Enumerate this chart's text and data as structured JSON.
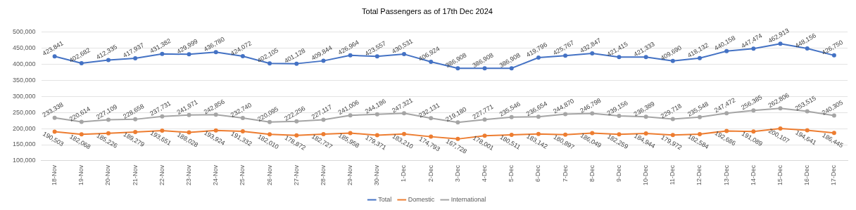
{
  "chart_data": {
    "type": "line",
    "title": "Total Passengers as of 17th Dec 2024",
    "categories": [
      "18-Nov",
      "19-Nov",
      "20-Nov",
      "21-Nov",
      "22-Nov",
      "23-Nov",
      "24-Nov",
      "25-Nov",
      "26-Nov",
      "27-Nov",
      "28-Nov",
      "29-Nov",
      "30-Nov",
      "1-Dec",
      "2-Dec",
      "3-Dec",
      "4-Dec",
      "5-Dec",
      "6-Dec",
      "7-Dec",
      "8-Dec",
      "9-Dec",
      "10-Dec",
      "11-Dec",
      "12-Dec",
      "13-Dec",
      "14-Dec",
      "15-Dec",
      "16-Dec",
      "17-Dec"
    ],
    "series": [
      {
        "name": "Total",
        "color": "#4472c4",
        "values": [
          423841,
          402682,
          412335,
          417937,
          431382,
          429999,
          436780,
          424072,
          402105,
          401128,
          409844,
          426964,
          423557,
          430531,
          406924,
          386908,
          386908,
          386908,
          419796,
          425767,
          432847,
          421415,
          421333,
          409690,
          418132,
          440158,
          447474,
          462913,
          448156,
          426750
        ],
        "value_labels": [
          "423,841",
          "402,682",
          "412,335",
          "417,937",
          "431,382",
          "429,999",
          "436,780",
          "424,072",
          "402,105",
          "401,128",
          "409,844",
          "426,964",
          "423,557",
          "430,531",
          "406,924",
          "386,908",
          "386,908",
          "386,908",
          "419,796",
          "425,767",
          "432,847",
          "421,415",
          "421,333",
          "409,690",
          "418,132",
          "440,158",
          "447,474",
          "462,913",
          "448,156",
          "426,750"
        ]
      },
      {
        "name": "Domestic",
        "color": "#ed7d31",
        "values": [
          190503,
          182068,
          185226,
          189279,
          193651,
          188028,
          193924,
          191332,
          182010,
          178872,
          182727,
          185958,
          179371,
          183210,
          174793,
          167728,
          178001,
          180511,
          183142,
          180897,
          186049,
          182259,
          184944,
          179972,
          182584,
          192686,
          191089,
          200107,
          194641,
          186445
        ],
        "value_labels": [
          "190,503",
          "182,068",
          "185,226",
          "189,279",
          "193,651",
          "188,028",
          "193,924",
          "191,332",
          "182,010",
          "178,872",
          "182,727",
          "185,958",
          "179,371",
          "183,210",
          "174,793",
          "167,728",
          "178,001",
          "180,511",
          "183,142",
          "180,897",
          "186,049",
          "182,259",
          "184,944",
          "179,972",
          "182,584",
          "192,686",
          "191,089",
          "200,107",
          "194,641",
          "186,445"
        ]
      },
      {
        "name": "International",
        "color": "#a5a5a5",
        "values": [
          233338,
          220614,
          227109,
          228658,
          237731,
          241971,
          242856,
          232740,
          220095,
          222256,
          227117,
          241006,
          244186,
          247321,
          232131,
          219180,
          227771,
          235546,
          236654,
          244870,
          246798,
          239156,
          236389,
          229718,
          235548,
          247472,
          256385,
          262806,
          253515,
          240305
        ],
        "value_labels": [
          "233,338",
          "220,614",
          "227,109",
          "228,658",
          "237,731",
          "241,971",
          "242,856",
          "232,740",
          "220,095",
          "222,256",
          "227,117",
          "241,006",
          "244,186",
          "247,321",
          "232,131",
          "219,180",
          "227,771",
          "235,546",
          "236,654",
          "244,870",
          "246,798",
          "239,156",
          "236,389",
          "229,718",
          "235,548",
          "247,472",
          "256,385",
          "262,806",
          "253,515",
          "240,305"
        ]
      }
    ],
    "ylim": [
      100000,
      500000
    ],
    "yticks": [
      {
        "value": 100000,
        "label": "100,000"
      },
      {
        "value": 150000,
        "label": "150,000"
      },
      {
        "value": 200000,
        "label": "200,000"
      },
      {
        "value": 250000,
        "label": "250,000"
      },
      {
        "value": 300000,
        "label": "300,000"
      },
      {
        "value": 350000,
        "label": "350,000"
      },
      {
        "value": 400000,
        "label": "400,000"
      },
      {
        "value": 450000,
        "label": "450,000"
      },
      {
        "value": 500000,
        "label": "500,000"
      }
    ],
    "grid": "y",
    "legend": "bottom",
    "marker": "circle",
    "line_style": "solid"
  }
}
